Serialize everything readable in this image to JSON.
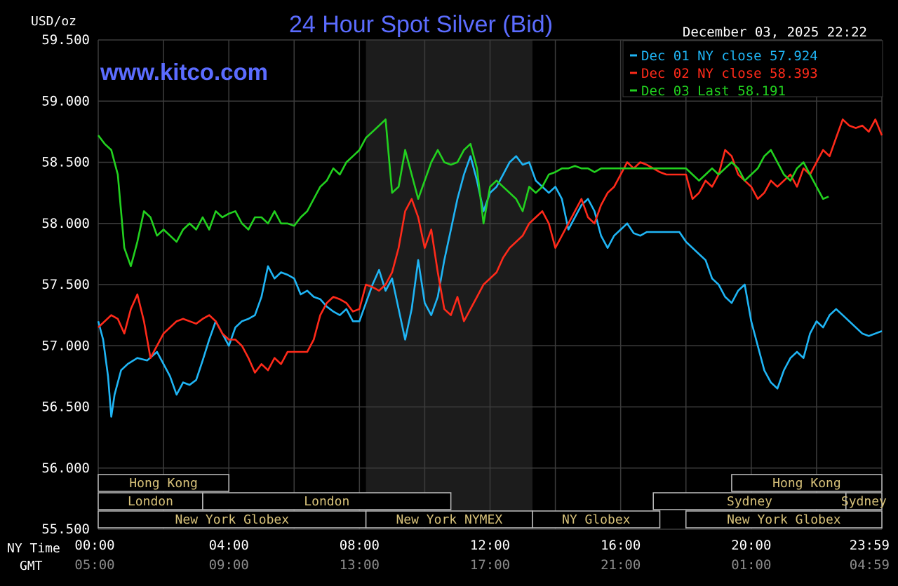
{
  "header": {
    "unit_label": "USD/oz",
    "title": "24 Hour Spot Silver (Bid)",
    "timestamp": "December 03, 2025 22:22",
    "watermark": "www.kitco.com"
  },
  "axis_labels": {
    "ny_time": "NY Time",
    "gmt": "GMT"
  },
  "colors": {
    "background": "#000000",
    "plot_background": "#000000",
    "nymex_shade": "#1c1c1c",
    "grid": "#3c3c3c",
    "axis_text": "#ffffff",
    "gmt_text": "#8a8a8a",
    "title": "#5b6cff",
    "watermark": "#5b6cff",
    "session_text": "#d8c27a",
    "session_border": "#bfbfbf"
  },
  "chart_data": {
    "type": "line",
    "x_unit": "hours (NY time)",
    "xlim": [
      0,
      24
    ],
    "ylim": [
      55.5,
      59.5
    ],
    "y_ticks": [
      "55.500",
      "56.000",
      "56.500",
      "57.000",
      "57.500",
      "58.000",
      "58.500",
      "59.000",
      "59.500"
    ],
    "y_tick_values": [
      55.5,
      56.0,
      56.5,
      57.0,
      57.5,
      58.0,
      58.5,
      59.0,
      59.5
    ],
    "x_gridlines": [
      0,
      2,
      4,
      6,
      8,
      10,
      12,
      14,
      16,
      18,
      20,
      22,
      24
    ],
    "x_ticks": [
      {
        "x": 0,
        "ny": "00:00",
        "gmt": "05:00"
      },
      {
        "x": 4,
        "ny": "04:00",
        "gmt": "09:00"
      },
      {
        "x": 8,
        "ny": "08:00",
        "gmt": "13:00"
      },
      {
        "x": 12,
        "ny": "12:00",
        "gmt": "17:00"
      },
      {
        "x": 16,
        "ny": "16:00",
        "gmt": "21:00"
      },
      {
        "x": 20,
        "ny": "20:00",
        "gmt": "01:00"
      },
      {
        "x": 24,
        "ny": "23:59",
        "gmt": "04:59"
      }
    ],
    "nymex_shade": [
      8.2,
      13.3
    ],
    "legend_position": "top-right",
    "grid": true,
    "series": [
      {
        "name": "Dec 01 NY close 57.924",
        "color": "#1fb5f5",
        "x": [
          0,
          0.15,
          0.3,
          0.4,
          0.5,
          0.7,
          0.9,
          1.2,
          1.5,
          1.8,
          2.0,
          2.2,
          2.4,
          2.6,
          2.8,
          3.0,
          3.2,
          3.4,
          3.6,
          3.8,
          4.0,
          4.2,
          4.4,
          4.6,
          4.8,
          5.0,
          5.2,
          5.4,
          5.6,
          5.8,
          6.0,
          6.2,
          6.4,
          6.6,
          6.8,
          7.0,
          7.2,
          7.4,
          7.6,
          7.8,
          8.0,
          8.2,
          8.4,
          8.6,
          8.8,
          9.0,
          9.2,
          9.4,
          9.6,
          9.8,
          10.0,
          10.2,
          10.4,
          10.6,
          10.8,
          11.0,
          11.2,
          11.4,
          11.6,
          11.8,
          12.0,
          12.2,
          12.4,
          12.6,
          12.8,
          13.0,
          13.2,
          13.4,
          13.6,
          13.8,
          14.0,
          14.2,
          14.4,
          14.6,
          14.8,
          15.0,
          15.2,
          15.4,
          15.6,
          15.8,
          16.0,
          16.2,
          16.4,
          16.6,
          16.8,
          17.0,
          17.2,
          17.4,
          17.6,
          17.8,
          18.0,
          18.2,
          18.4,
          18.6,
          18.8,
          19.0,
          19.2,
          19.4,
          19.6,
          19.8,
          20.0,
          20.2,
          20.4,
          20.6,
          20.8,
          21.0,
          21.2,
          21.4,
          21.6,
          21.8,
          22.0,
          22.2,
          22.4,
          22.6,
          22.8,
          23.0,
          23.2,
          23.4,
          23.6,
          23.8,
          24.0
        ],
        "y": [
          57.2,
          57.05,
          56.75,
          56.42,
          56.6,
          56.8,
          56.85,
          56.9,
          56.88,
          56.95,
          56.85,
          56.75,
          56.6,
          56.7,
          56.68,
          56.72,
          56.88,
          57.05,
          57.2,
          57.1,
          57.0,
          57.15,
          57.2,
          57.22,
          57.25,
          57.4,
          57.65,
          57.55,
          57.6,
          57.58,
          57.55,
          57.42,
          57.45,
          57.4,
          57.38,
          57.32,
          57.28,
          57.25,
          57.3,
          57.2,
          57.2,
          57.35,
          57.5,
          57.62,
          57.45,
          57.55,
          57.3,
          57.05,
          57.3,
          57.7,
          57.35,
          57.25,
          57.4,
          57.7,
          57.95,
          58.2,
          58.4,
          58.55,
          58.35,
          58.1,
          58.25,
          58.3,
          58.4,
          58.5,
          58.55,
          58.48,
          58.5,
          58.35,
          58.3,
          58.25,
          58.3,
          58.2,
          57.95,
          58.05,
          58.15,
          58.2,
          58.1,
          57.9,
          57.8,
          57.9,
          57.95,
          58.0,
          57.92,
          57.9,
          57.93,
          57.93,
          57.93,
          57.93,
          57.93,
          57.93,
          57.85,
          57.8,
          57.75,
          57.7,
          57.55,
          57.5,
          57.4,
          57.35,
          57.45,
          57.5,
          57.2,
          57.0,
          56.8,
          56.7,
          56.65,
          56.8,
          56.9,
          56.95,
          56.9,
          57.1,
          57.2,
          57.15,
          57.25,
          57.3,
          57.25,
          57.2,
          57.15,
          57.1,
          57.08,
          57.1,
          57.12
        ]
      },
      {
        "name": "Dec 02 NY close 58.393",
        "color": "#ff2a1a",
        "x": [
          0,
          0.2,
          0.4,
          0.6,
          0.8,
          1.0,
          1.2,
          1.4,
          1.6,
          1.8,
          2.0,
          2.2,
          2.4,
          2.6,
          2.8,
          3.0,
          3.2,
          3.4,
          3.6,
          3.8,
          4.0,
          4.2,
          4.4,
          4.6,
          4.8,
          5.0,
          5.2,
          5.4,
          5.6,
          5.8,
          6.0,
          6.2,
          6.4,
          6.6,
          6.8,
          7.0,
          7.2,
          7.4,
          7.6,
          7.8,
          8.0,
          8.2,
          8.4,
          8.6,
          8.8,
          9.0,
          9.2,
          9.4,
          9.6,
          9.8,
          10.0,
          10.2,
          10.4,
          10.6,
          10.8,
          11.0,
          11.2,
          11.4,
          11.6,
          11.8,
          12.0,
          12.2,
          12.4,
          12.6,
          12.8,
          13.0,
          13.2,
          13.4,
          13.6,
          13.8,
          14.0,
          14.2,
          14.4,
          14.6,
          14.8,
          15.0,
          15.2,
          15.4,
          15.6,
          15.8,
          16.0,
          16.2,
          16.4,
          16.6,
          16.8,
          17.0,
          17.2,
          17.4,
          17.6,
          17.8,
          18.0,
          18.2,
          18.4,
          18.6,
          18.8,
          19.0,
          19.2,
          19.4,
          19.6,
          19.8,
          20.0,
          20.2,
          20.4,
          20.6,
          20.8,
          21.0,
          21.2,
          21.4,
          21.6,
          21.8,
          22.0,
          22.2,
          22.4,
          22.6,
          22.8,
          23.0,
          23.2,
          23.4,
          23.6,
          23.8,
          24.0
        ],
        "y": [
          57.15,
          57.2,
          57.25,
          57.22,
          57.1,
          57.3,
          57.42,
          57.2,
          56.9,
          57.0,
          57.1,
          57.15,
          57.2,
          57.22,
          57.2,
          57.18,
          57.22,
          57.25,
          57.2,
          57.1,
          57.05,
          57.05,
          57.0,
          56.9,
          56.78,
          56.85,
          56.8,
          56.9,
          56.85,
          56.95,
          56.95,
          56.95,
          56.95,
          57.05,
          57.25,
          57.35,
          57.4,
          57.38,
          57.35,
          57.28,
          57.3,
          57.5,
          57.48,
          57.45,
          57.5,
          57.6,
          57.8,
          58.1,
          58.2,
          58.05,
          57.8,
          57.95,
          57.6,
          57.3,
          57.25,
          57.4,
          57.2,
          57.3,
          57.4,
          57.5,
          57.55,
          57.6,
          57.72,
          57.8,
          57.85,
          57.9,
          58.0,
          58.05,
          58.1,
          58.0,
          57.8,
          57.9,
          58.0,
          58.1,
          58.2,
          58.05,
          58.0,
          58.15,
          58.25,
          58.3,
          58.4,
          58.5,
          58.45,
          58.5,
          58.48,
          58.45,
          58.42,
          58.4,
          58.4,
          58.4,
          58.4,
          58.2,
          58.25,
          58.35,
          58.3,
          58.4,
          58.6,
          58.55,
          58.4,
          58.35,
          58.3,
          58.2,
          58.25,
          58.35,
          58.3,
          58.35,
          58.4,
          58.3,
          58.45,
          58.4,
          58.5,
          58.6,
          58.55,
          58.7,
          58.85,
          58.8,
          58.78,
          58.8,
          58.75,
          58.85,
          58.72
        ]
      },
      {
        "name": "Dec 03 Last 58.191",
        "color": "#22d11f",
        "x": [
          0,
          0.2,
          0.4,
          0.6,
          0.8,
          1.0,
          1.1,
          1.2,
          1.4,
          1.6,
          1.8,
          2.0,
          2.2,
          2.4,
          2.6,
          2.8,
          3.0,
          3.2,
          3.4,
          3.6,
          3.8,
          4.0,
          4.2,
          4.4,
          4.6,
          4.8,
          5.0,
          5.2,
          5.4,
          5.6,
          5.8,
          6.0,
          6.2,
          6.4,
          6.6,
          6.8,
          7.0,
          7.2,
          7.4,
          7.6,
          7.8,
          8.0,
          8.2,
          8.4,
          8.6,
          8.8,
          8.9,
          9.0,
          9.2,
          9.4,
          9.6,
          9.8,
          10.0,
          10.2,
          10.4,
          10.6,
          10.8,
          11.0,
          11.2,
          11.4,
          11.6,
          11.8,
          12.0,
          12.2,
          12.4,
          12.6,
          12.8,
          13.0,
          13.2,
          13.4,
          13.6,
          13.8,
          14.0,
          14.2,
          14.4,
          14.6,
          14.8,
          15.0,
          15.2,
          15.4,
          15.6,
          15.8,
          16.0,
          16.2,
          16.4,
          16.6,
          16.8,
          17.0,
          17.2,
          17.4,
          17.6,
          17.8,
          18.0,
          18.2,
          18.4,
          18.6,
          18.8,
          19.0,
          19.2,
          19.4,
          19.6,
          19.8,
          20.0,
          20.2,
          20.4,
          20.6,
          20.8,
          21.0,
          21.2,
          21.4,
          21.6,
          21.8,
          22.0,
          22.2,
          22.37
        ],
        "y": [
          58.72,
          58.65,
          58.6,
          58.4,
          57.8,
          57.65,
          57.75,
          57.85,
          58.1,
          58.05,
          57.9,
          57.95,
          57.9,
          57.85,
          57.95,
          58.0,
          57.95,
          58.05,
          57.95,
          58.1,
          58.05,
          58.08,
          58.1,
          58.0,
          57.95,
          58.05,
          58.05,
          58.0,
          58.1,
          58.0,
          58.0,
          57.98,
          58.05,
          58.1,
          58.2,
          58.3,
          58.35,
          58.45,
          58.4,
          58.5,
          58.55,
          58.6,
          58.7,
          58.75,
          58.8,
          58.85,
          58.55,
          58.25,
          58.3,
          58.6,
          58.4,
          58.2,
          58.35,
          58.5,
          58.6,
          58.5,
          58.48,
          58.5,
          58.6,
          58.65,
          58.45,
          58.0,
          58.3,
          58.35,
          58.3,
          58.25,
          58.2,
          58.1,
          58.3,
          58.25,
          58.3,
          58.4,
          58.42,
          58.45,
          58.45,
          58.47,
          58.45,
          58.45,
          58.42,
          58.45,
          58.45,
          58.45,
          58.45,
          58.45,
          58.45,
          58.45,
          58.45,
          58.45,
          58.45,
          58.45,
          58.45,
          58.45,
          58.45,
          58.4,
          58.35,
          58.4,
          58.45,
          58.4,
          58.45,
          58.5,
          58.45,
          58.35,
          58.4,
          58.45,
          58.55,
          58.6,
          58.5,
          58.4,
          58.35,
          58.45,
          58.5,
          58.4,
          58.3,
          58.2,
          58.22
        ]
      }
    ],
    "sessions": [
      {
        "label": "Hong Kong",
        "row": 0,
        "start": 0,
        "end": 4.0
      },
      {
        "label": "Hong Kong",
        "row": 0,
        "start": 19.4,
        "end": 24
      },
      {
        "label": "London",
        "row": 1,
        "start": 0,
        "end": 3.2
      },
      {
        "label": "London",
        "row": 1,
        "start": 3.2,
        "end": 10.8
      },
      {
        "label": "Sydney",
        "row": 1,
        "start": 17.0,
        "end": 22.9
      },
      {
        "label": "Sydney",
        "row": 1,
        "start": 22.9,
        "end": 24
      },
      {
        "label": "New York Globex",
        "row": 2,
        "start": 0,
        "end": 8.2
      },
      {
        "label": "New York NYMEX",
        "row": 2,
        "start": 8.2,
        "end": 13.3
      },
      {
        "label": "NY Globex",
        "row": 2,
        "start": 13.3,
        "end": 17.2
      },
      {
        "label": "New York Globex",
        "row": 2,
        "start": 18.0,
        "end": 24
      }
    ]
  }
}
